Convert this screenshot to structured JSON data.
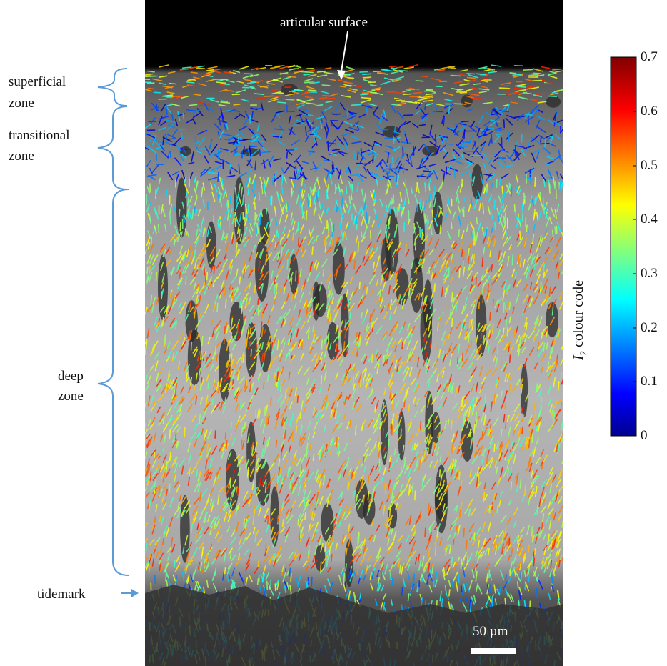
{
  "annotations": {
    "articular_surface": "articular surface",
    "superficial_line1": "superficial",
    "superficial_line2": "zone",
    "transitional_line1": "transitional",
    "transitional_line2": "zone",
    "deep_line1": "deep",
    "deep_line2": "zone",
    "tidemark": "tidemark"
  },
  "colorbar": {
    "title_symbol": "I",
    "title_subscript": "2",
    "title_rest": " colour code",
    "ticks": [
      "0.7",
      "0.6",
      "0.5",
      "0.4",
      "0.3",
      "0.2",
      "0.1",
      "0"
    ],
    "range": [
      0,
      0.7
    ],
    "colormap": "jet"
  },
  "scale_bar": {
    "label": "50 µm"
  },
  "colors": {
    "bracket": "#5b9bd5",
    "tidemark_arrow": "#5b9bd5",
    "background_top": "#000000"
  }
}
